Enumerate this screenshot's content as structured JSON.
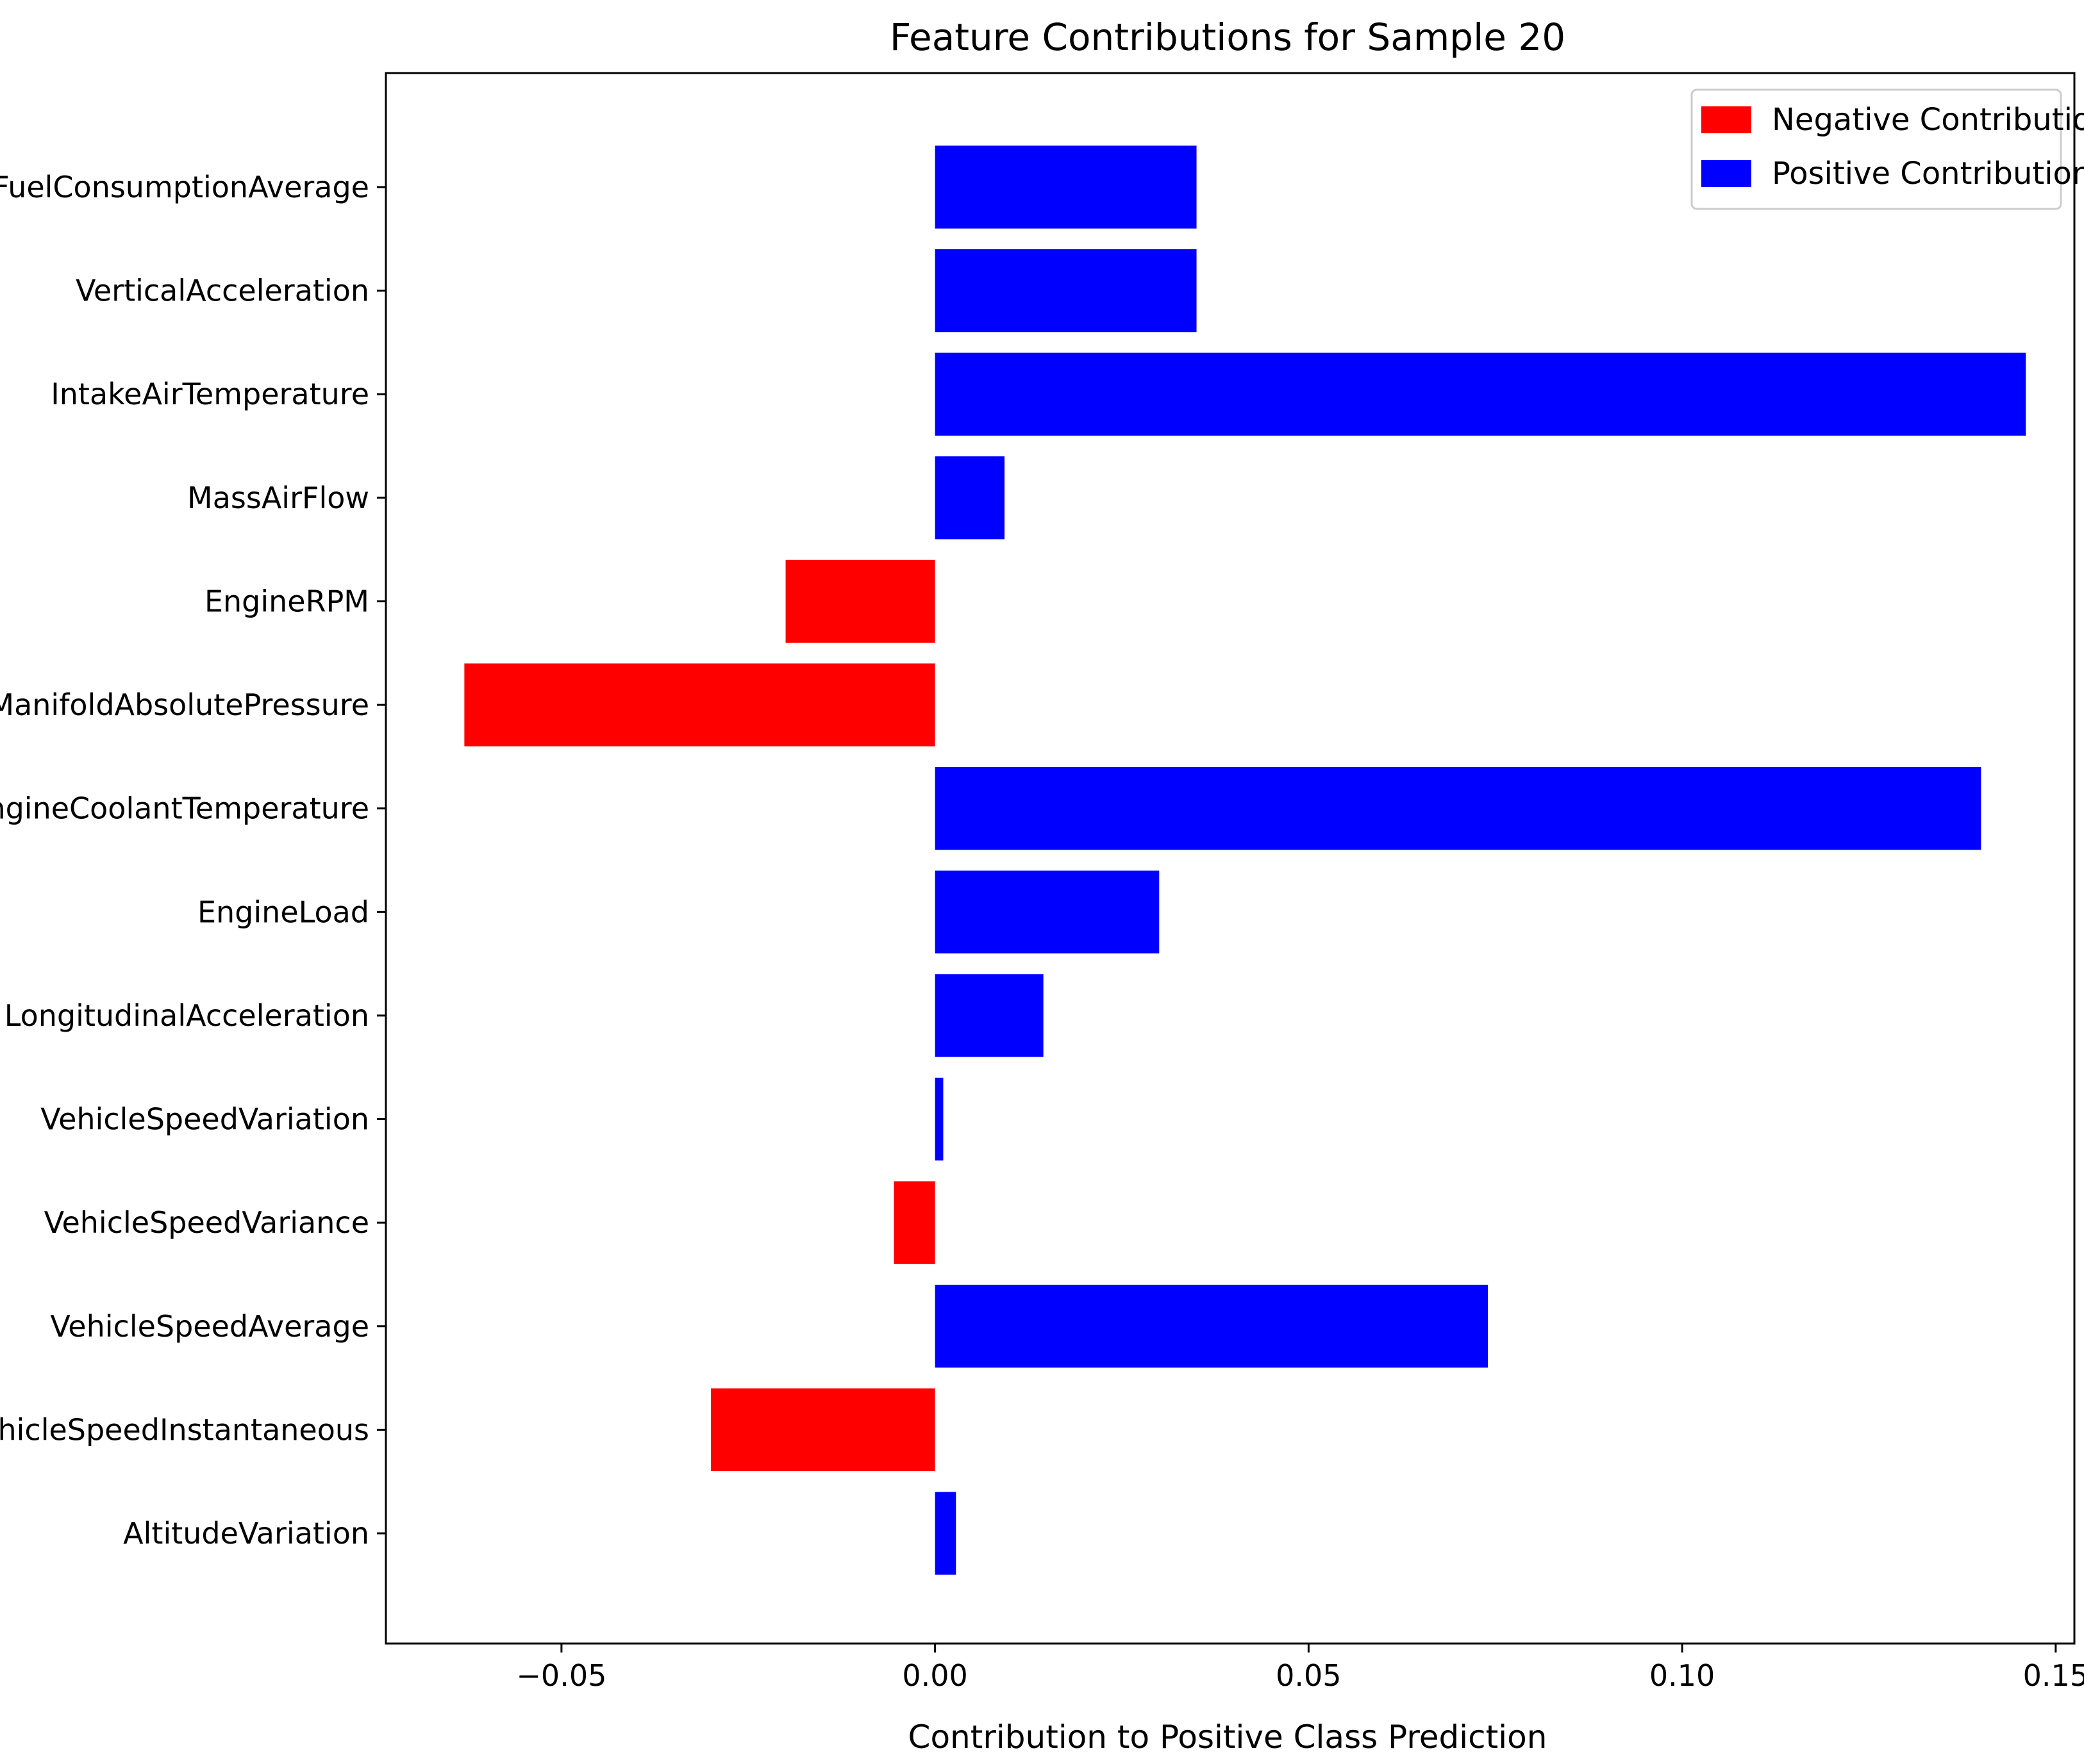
{
  "chart_data": {
    "type": "bar",
    "orientation": "horizontal",
    "title": "Feature Contributions for Sample 20",
    "xlabel": "Contribution to Positive Class Prediction",
    "ylabel": "",
    "xlim": [
      -0.0735,
      0.1525
    ],
    "xticks": [
      -0.05,
      0.0,
      0.05,
      0.1,
      0.15
    ],
    "xtick_labels": [
      "−0.05",
      "0.00",
      "0.05",
      "0.10",
      "0.15"
    ],
    "categories": [
      "FuelConsumptionAverage",
      "VerticalAcceleration",
      "IntakeAirTemperature",
      "MassAirFlow",
      "EngineRPM",
      "ManifoldAbsolutePressure",
      "EngineCoolantTemperature",
      "EngineLoad",
      "LongitudinalAcceleration",
      "VehicleSpeedVariation",
      "VehicleSpeedVariance",
      "VehicleSpeedAverage",
      "VehicleSpeedInstantaneous",
      "AltitudeVariation"
    ],
    "values": [
      0.035,
      0.035,
      0.146,
      0.0093,
      -0.02,
      -0.063,
      0.14,
      0.03,
      0.0145,
      0.0011,
      -0.0055,
      0.074,
      -0.03,
      0.0028
    ],
    "colors": {
      "negative": "#ff0000",
      "positive": "#0000ff"
    },
    "legend": {
      "position": "top-right",
      "entries": [
        "Negative Contribution",
        "Positive Contribution"
      ]
    },
    "grid": false
  }
}
